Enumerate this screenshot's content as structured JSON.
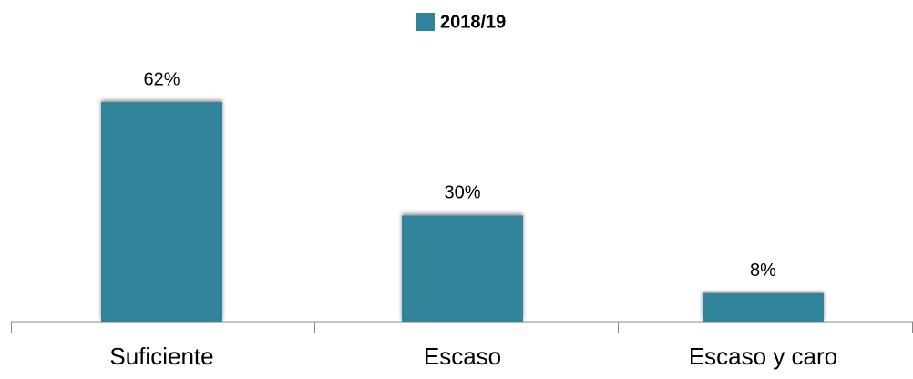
{
  "chart_data": {
    "type": "bar",
    "categories": [
      "Suficiente",
      "Escaso",
      "Escaso y caro"
    ],
    "series": [
      {
        "name": "2018/19",
        "color": "#31849b",
        "values": [
          62,
          30,
          8
        ],
        "value_labels": [
          "62%",
          "30%",
          "8%"
        ]
      }
    ],
    "legend": "top"
  }
}
